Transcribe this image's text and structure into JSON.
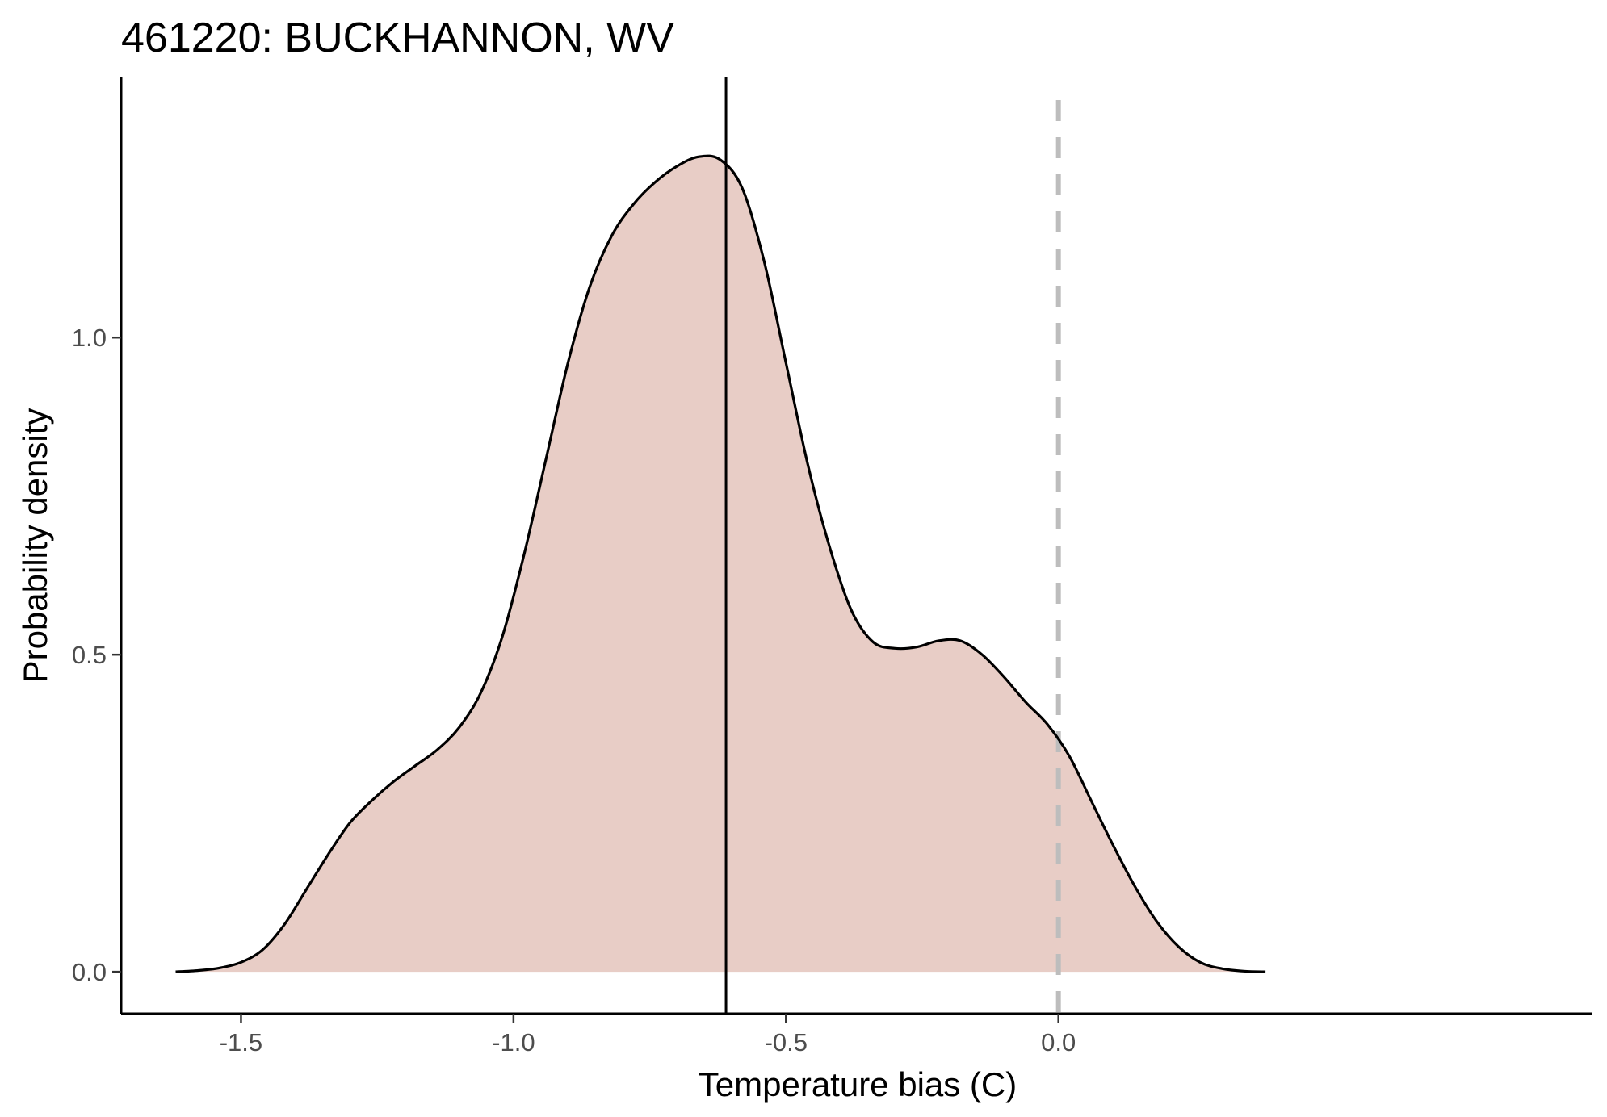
{
  "chart_data": {
    "type": "area",
    "title": "461220: BUCKHANNON, WV",
    "xlabel": "Temperature bias (C)",
    "ylabel": "Probability density",
    "xlim": [
      -1.72,
      0.98
    ],
    "ylim": [
      -0.066,
      1.41
    ],
    "x_ticks": [
      -1.5,
      -1.0,
      -0.5,
      0.0
    ],
    "x_tick_labels": [
      "-1.5",
      "-1.0",
      "-0.5",
      "0.0"
    ],
    "y_ticks": [
      0.0,
      0.5,
      1.0
    ],
    "y_tick_labels": [
      "0.0",
      "0.5",
      "1.0"
    ],
    "grid": false,
    "legend": "none",
    "fill_color": "#e8cdc6",
    "line_color": "#000000",
    "reference_lines": [
      {
        "x": -0.61,
        "style": "solid",
        "color": "#000000"
      },
      {
        "x": 0.0,
        "style": "dashed",
        "color": "#bdbdbd"
      }
    ],
    "series": [
      {
        "x": [
          -1.62,
          -1.58,
          -1.54,
          -1.5,
          -1.46,
          -1.42,
          -1.38,
          -1.34,
          -1.3,
          -1.26,
          -1.22,
          -1.18,
          -1.14,
          -1.1,
          -1.06,
          -1.02,
          -0.98,
          -0.94,
          -0.9,
          -0.86,
          -0.82,
          -0.78,
          -0.74,
          -0.7,
          -0.66,
          -0.62,
          -0.58,
          -0.54,
          -0.5,
          -0.46,
          -0.42,
          -0.38,
          -0.34,
          -0.3,
          -0.26,
          -0.22,
          -0.18,
          -0.14,
          -0.1,
          -0.06,
          -0.02,
          0.02,
          0.06,
          0.1,
          0.14,
          0.18,
          0.22,
          0.26,
          0.3,
          0.34,
          0.38
        ],
        "y": [
          0.0,
          0.002,
          0.006,
          0.015,
          0.035,
          0.075,
          0.13,
          0.185,
          0.235,
          0.27,
          0.3,
          0.325,
          0.35,
          0.385,
          0.44,
          0.53,
          0.66,
          0.81,
          0.96,
          1.08,
          1.16,
          1.21,
          1.245,
          1.27,
          1.285,
          1.28,
          1.235,
          1.12,
          0.96,
          0.8,
          0.67,
          0.57,
          0.52,
          0.51,
          0.512,
          0.522,
          0.522,
          0.5,
          0.465,
          0.425,
          0.39,
          0.34,
          0.27,
          0.2,
          0.135,
          0.08,
          0.04,
          0.015,
          0.005,
          0.001,
          0.0
        ]
      }
    ]
  }
}
